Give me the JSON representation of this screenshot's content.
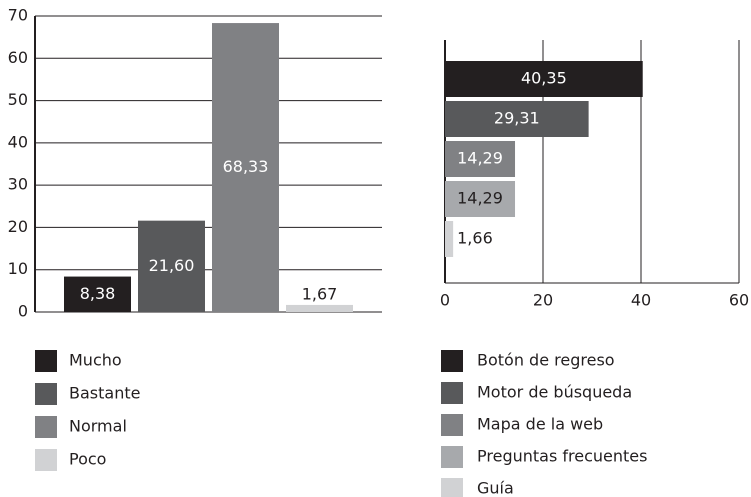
{
  "chart_data": [
    {
      "type": "bar",
      "categories": [
        "Mucho",
        "Bastante",
        "Normal",
        "Poco"
      ],
      "values": [
        8.38,
        21.6,
        68.33,
        1.67
      ],
      "value_labels": [
        "8,38",
        "21,60",
        "68,33",
        "1,67"
      ],
      "colors": [
        "#231f20",
        "#58595b",
        "#808184",
        "#d1d2d4"
      ],
      "ylim": [
        0,
        70
      ],
      "yticks": [
        0,
        10,
        20,
        30,
        40,
        50,
        60,
        70
      ],
      "grid": true
    },
    {
      "type": "hbar",
      "categories": [
        "Botón de regreso",
        "Motor de búsqueda",
        "Mapa de la web",
        "Preguntas frecuentes",
        "Guía"
      ],
      "values": [
        40.35,
        29.31,
        14.29,
        14.29,
        1.66
      ],
      "value_labels": [
        "40,35",
        "29,31",
        "14,29",
        "14,29",
        "1,66"
      ],
      "colors": [
        "#231f20",
        "#58595b",
        "#808184",
        "#a7a9ac",
        "#d1d2d4"
      ],
      "xlim": [
        0,
        60
      ],
      "xticks": [
        0,
        20,
        40,
        60
      ],
      "grid": true
    }
  ]
}
